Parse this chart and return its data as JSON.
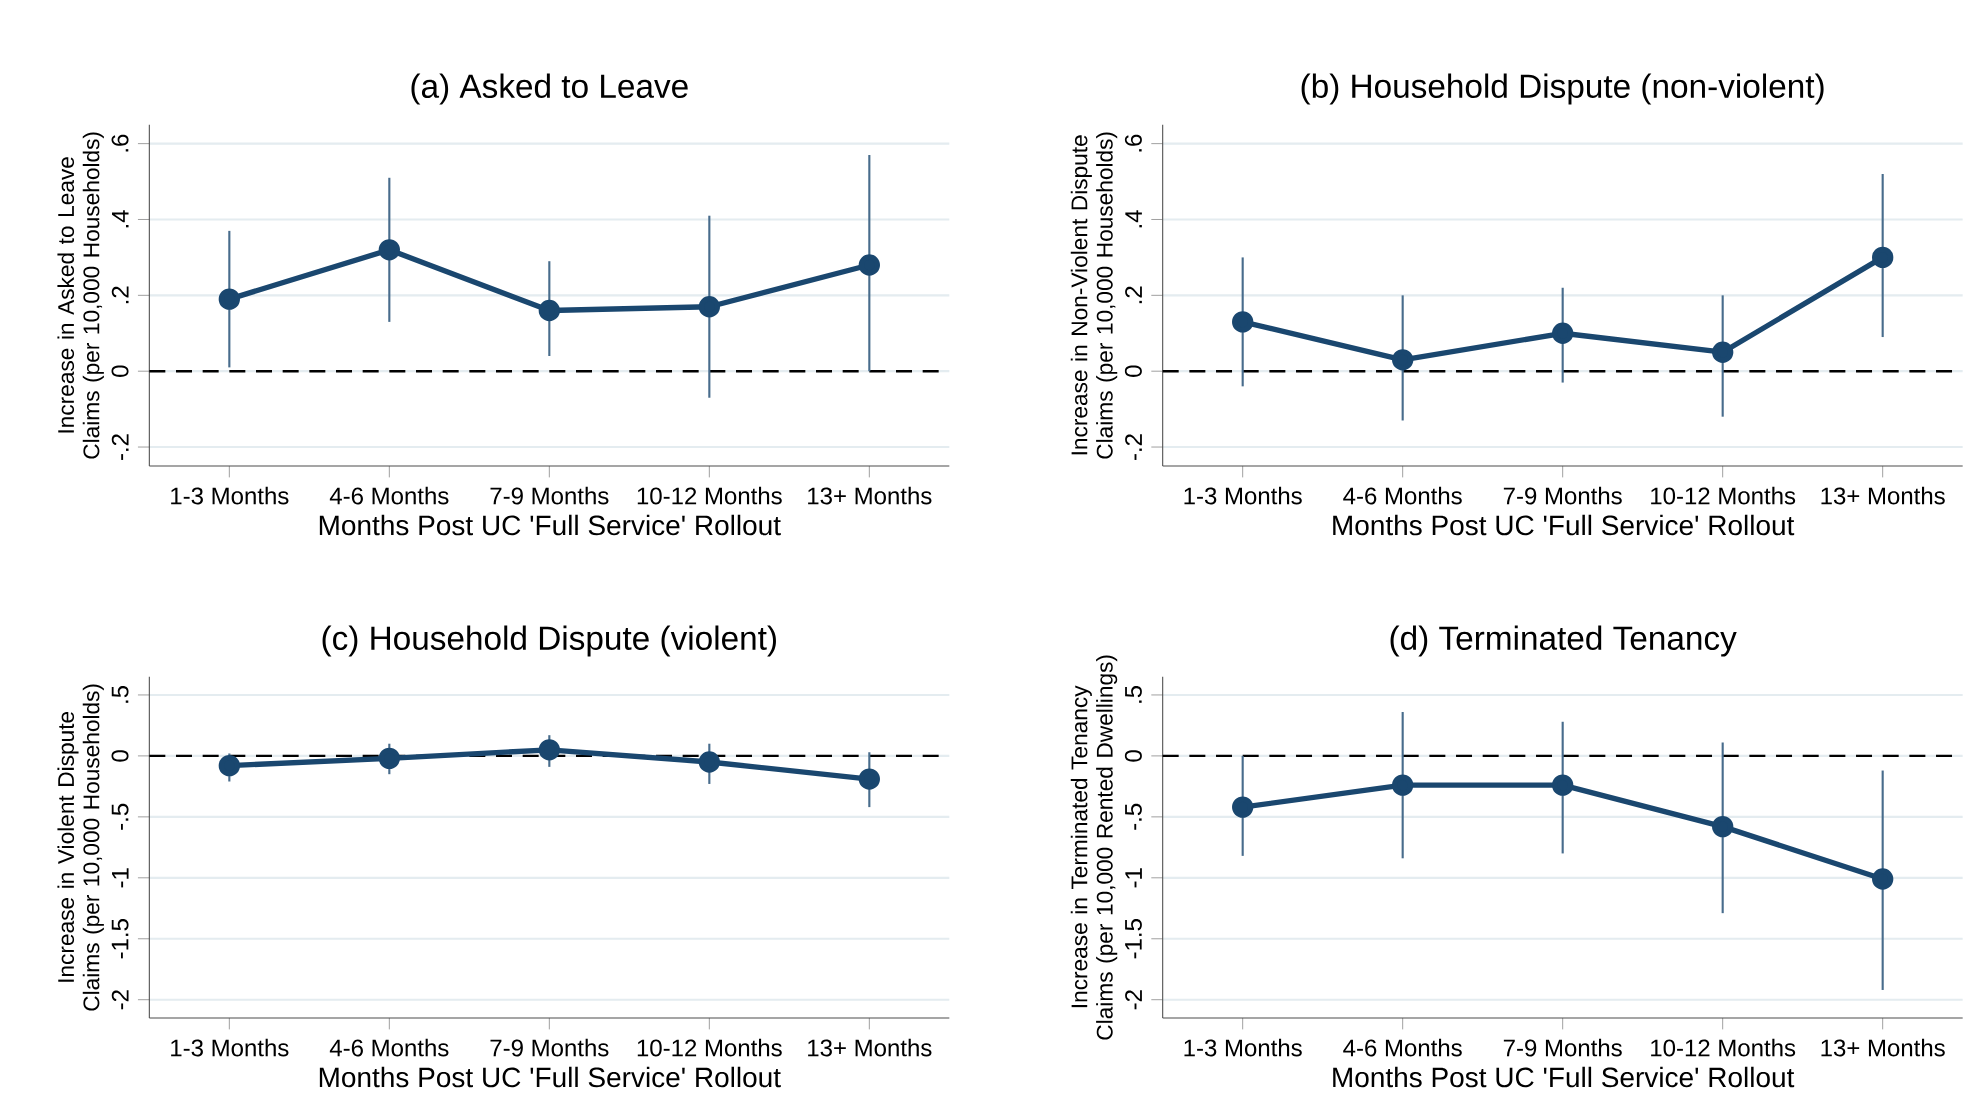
{
  "chart_data": [
    {
      "type": "line",
      "title": "(a) Asked to Leave",
      "xlabel": "Months Post UC 'Full Service' Rollout",
      "ylabel": "Increase in Asked to Leave Claims (per 10,000 Households)",
      "categories": [
        "1-3 Months",
        "4-6 Months",
        "7-9 Months",
        "10-12 Months",
        "13+ Months"
      ],
      "values": [
        0.19,
        0.32,
        0.16,
        0.17,
        0.28
      ],
      "errors": [
        [
          0.01,
          0.37
        ],
        [
          0.13,
          0.51
        ],
        [
          0.04,
          0.29
        ],
        [
          -0.07,
          0.41
        ],
        [
          0.0,
          0.57
        ]
      ],
      "color": "#1a476f",
      "marker": "circle",
      "grid": "y",
      "ylim": [
        -0.25,
        0.65
      ],
      "yticks": [
        {
          "value": -0.2,
          "label": "-.2"
        },
        0,
        {
          "value": 0.2,
          "label": ".2"
        },
        {
          "value": 0.4,
          "label": ".4"
        },
        {
          "value": 0.6,
          "label": ".6"
        }
      ],
      "ref_lines": [
        {
          "axis": "y",
          "value": 0,
          "color": "#000000",
          "line_style": "dashed"
        }
      ]
    },
    {
      "type": "line",
      "title": "(b) Household Dispute (non-violent)",
      "xlabel": "Months Post UC 'Full Service' Rollout",
      "ylabel": "Increase in Non-Violent Dispute Claims (per 10,000 Households)",
      "categories": [
        "1-3 Months",
        "4-6 Months",
        "7-9 Months",
        "10-12 Months",
        "13+ Months"
      ],
      "values": [
        0.13,
        0.03,
        0.1,
        0.05,
        0.3
      ],
      "errors": [
        [
          -0.04,
          0.3
        ],
        [
          -0.13,
          0.2
        ],
        [
          -0.03,
          0.22
        ],
        [
          -0.12,
          0.2
        ],
        [
          0.09,
          0.52
        ]
      ],
      "color": "#1a476f",
      "marker": "circle",
      "grid": "y",
      "ylim": [
        -0.25,
        0.65
      ],
      "yticks": [
        {
          "value": -0.2,
          "label": "-.2"
        },
        0,
        {
          "value": 0.2,
          "label": ".2"
        },
        {
          "value": 0.4,
          "label": ".4"
        },
        {
          "value": 0.6,
          "label": ".6"
        }
      ],
      "ref_lines": [
        {
          "axis": "y",
          "value": 0,
          "color": "#000000",
          "line_style": "dashed"
        }
      ]
    },
    {
      "type": "line",
      "title": "(c) Household Dispute (violent)",
      "xlabel": "Months Post UC 'Full Service' Rollout",
      "ylabel": "Increase in Violent Dispute Claims (per 10,000 Households)",
      "categories": [
        "1-3 Months",
        "4-6 Months",
        "7-9 Months",
        "10-12 Months",
        "13+ Months"
      ],
      "values": [
        -0.08,
        -0.02,
        0.05,
        -0.05,
        -0.19
      ],
      "errors": [
        [
          -0.21,
          0.02
        ],
        [
          -0.15,
          0.1
        ],
        [
          -0.09,
          0.17
        ],
        [
          -0.23,
          0.1
        ],
        [
          -0.42,
          0.03
        ]
      ],
      "color": "#1a476f",
      "marker": "circle",
      "grid": "y",
      "ylim": [
        -2.15,
        0.65
      ],
      "yticks": [
        -2,
        -1.5,
        -1,
        {
          "value": -0.5,
          "label": "-.5"
        },
        0,
        {
          "value": 0.5,
          "label": ".5"
        }
      ],
      "ref_lines": [
        {
          "axis": "y",
          "value": 0,
          "color": "#000000",
          "line_style": "dashed"
        }
      ]
    },
    {
      "type": "line",
      "title": "(d) Terminated Tenancy",
      "xlabel": "Months Post UC 'Full Service' Rollout",
      "ylabel": "Increase in Terminated Tenancy Claims (per 10,000 Rented Dwellings)",
      "categories": [
        "1-3 Months",
        "4-6 Months",
        "7-9 Months",
        "10-12 Months",
        "13+ Months"
      ],
      "values": [
        -0.42,
        -0.24,
        -0.24,
        -0.58,
        -1.01
      ],
      "errors": [
        [
          -0.82,
          0.0
        ],
        [
          -0.84,
          0.36
        ],
        [
          -0.8,
          0.28
        ],
        [
          -1.29,
          0.11
        ],
        [
          -1.92,
          -0.12
        ]
      ],
      "color": "#1a476f",
      "marker": "circle",
      "grid": "y",
      "ylim": [
        -2.15,
        0.65
      ],
      "yticks": [
        -2,
        -1.5,
        -1,
        {
          "value": -0.5,
          "label": "-.5"
        },
        0,
        {
          "value": 0.5,
          "label": ".5"
        }
      ],
      "ref_lines": [
        {
          "axis": "y",
          "value": 0,
          "color": "#000000",
          "line_style": "dashed"
        }
      ]
    }
  ]
}
